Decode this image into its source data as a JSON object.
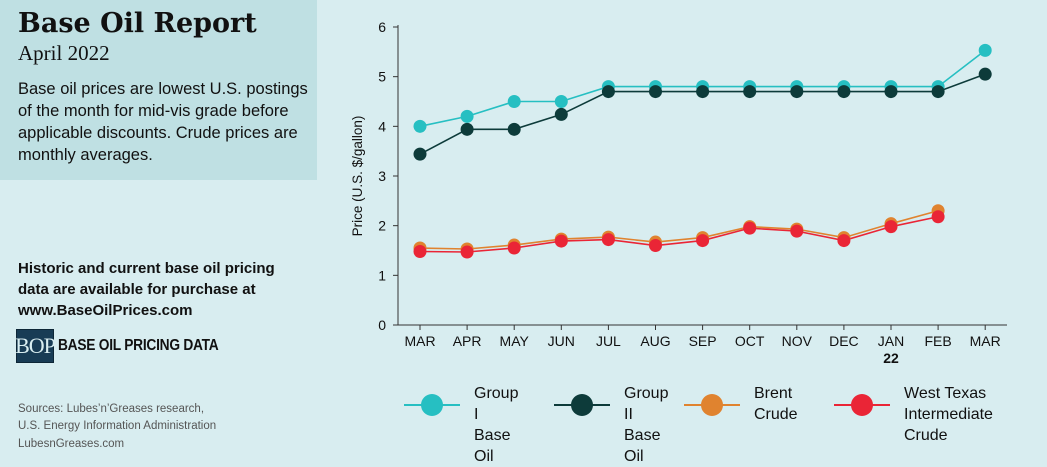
{
  "header": {
    "title": "Base Oil Report",
    "subtitle": "April 2022",
    "description": "Base oil prices are lowest U.S. postings of the month for mid-vis grade before applicable discounts. Crude prices are monthly averages."
  },
  "purchase": {
    "line1": "Historic and current base oil pricing data are available for purchase at",
    "url": "www.BaseOilPrices.com"
  },
  "bop": {
    "logo": "BOP",
    "label": "BASE OIL PRICING DATA"
  },
  "sources": {
    "line1": "Sources: Lubes’n’Greases research,",
    "line2": "U.S. Energy Information Administration",
    "site": "LubesnGreases.com"
  },
  "colors": {
    "group1": "#26bfc2",
    "group2": "#0d3b3a",
    "brent": "#e0832f",
    "wti": "#ea2536",
    "background": "#d8edf0",
    "header_box": "#bfe0e3"
  },
  "chart_data": {
    "type": "line",
    "categories": [
      "MAR",
      "APR",
      "MAY",
      "JUN",
      "JUL",
      "AUG",
      "SEP",
      "OCT",
      "NOV",
      "DEC",
      "JAN",
      "FEB",
      "MAR"
    ],
    "category_sublabels": [
      "",
      "",
      "",
      "",
      "",
      "",
      "",
      "",
      "",
      "",
      "22",
      "",
      ""
    ],
    "ylabel": "Price (U.S. $/gallon)",
    "ylim": [
      0,
      6
    ],
    "yticks": [
      0,
      1,
      2,
      3,
      4,
      5,
      6
    ],
    "grid": false,
    "legend_position": "bottom",
    "series": [
      {
        "name": "Group I\nBase Oil",
        "color": "#26bfc2",
        "values": [
          4.0,
          4.2,
          4.5,
          4.5,
          4.8,
          4.8,
          4.8,
          4.8,
          4.8,
          4.8,
          4.8,
          4.8,
          5.53
        ]
      },
      {
        "name": "Group II\nBase Oil",
        "color": "#0d3b3a",
        "values": [
          3.44,
          3.94,
          3.94,
          4.24,
          4.7,
          4.7,
          4.7,
          4.7,
          4.7,
          4.7,
          4.7,
          4.7,
          5.05
        ]
      },
      {
        "name": "Brent\nCrude",
        "color": "#e0832f",
        "values": [
          1.55,
          1.53,
          1.61,
          1.73,
          1.77,
          1.67,
          1.76,
          1.98,
          1.93,
          1.76,
          2.04,
          2.3,
          null
        ]
      },
      {
        "name": "West Texas\nIntermediate Crude",
        "color": "#ea2536",
        "values": [
          1.48,
          1.47,
          1.55,
          1.69,
          1.72,
          1.6,
          1.7,
          1.95,
          1.89,
          1.7,
          1.98,
          2.18,
          null
        ]
      }
    ]
  }
}
